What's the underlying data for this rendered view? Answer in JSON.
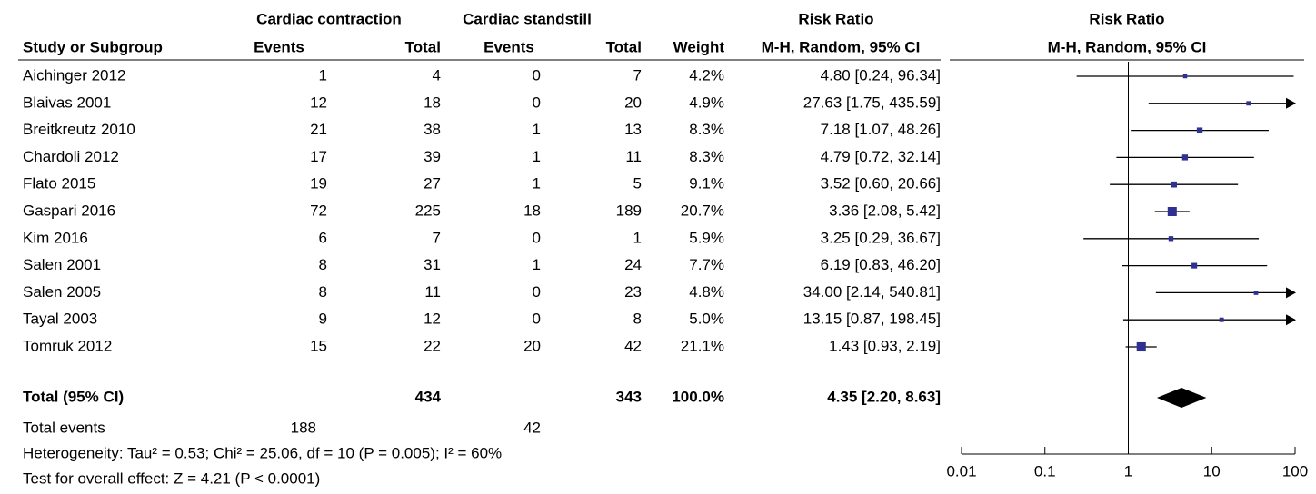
{
  "header": {
    "group1": "Cardiac contraction",
    "group2": "Cardiac standstill",
    "rr_table": "Risk Ratio",
    "rr_plot": "Risk Ratio"
  },
  "columns": [
    "Study or Subgroup",
    "Events",
    "Total",
    "Events",
    "Total",
    "Weight",
    "M-H, Random, 95% CI",
    "M-H, Random, 95% CI"
  ],
  "rows": [
    [
      "Aichinger 2012",
      "1",
      "4",
      "0",
      "7",
      "4.2%",
      "4.80 [0.24, 96.34]"
    ],
    [
      "Blaivas 2001",
      "12",
      "18",
      "0",
      "20",
      "4.9%",
      "27.63 [1.75, 435.59]"
    ],
    [
      "Breitkreutz 2010",
      "21",
      "38",
      "1",
      "13",
      "8.3%",
      "7.18 [1.07, 48.26]"
    ],
    [
      "Chardoli 2012",
      "17",
      "39",
      "1",
      "11",
      "8.3%",
      "4.79 [0.72, 32.14]"
    ],
    [
      "Flato 2015",
      "19",
      "27",
      "1",
      "5",
      "9.1%",
      "3.52 [0.60, 20.66]"
    ],
    [
      "Gaspari 2016",
      "72",
      "225",
      "18",
      "189",
      "20.7%",
      "3.36 [2.08, 5.42]"
    ],
    [
      "Kim 2016",
      "6",
      "7",
      "0",
      "1",
      "5.9%",
      "3.25 [0.29, 36.67]"
    ],
    [
      "Salen 2001",
      "8",
      "31",
      "1",
      "24",
      "7.7%",
      "6.19 [0.83, 46.20]"
    ],
    [
      "Salen 2005",
      "8",
      "11",
      "0",
      "23",
      "4.8%",
      "34.00 [2.14, 540.81]"
    ],
    [
      "Tayal 2003",
      "9",
      "12",
      "0",
      "8",
      "5.0%",
      "13.15 [0.87, 198.45]"
    ],
    [
      "Tomruk 2012",
      "15",
      "22",
      "20",
      "42",
      "21.1%",
      "1.43 [0.93, 2.19]"
    ]
  ],
  "total": {
    "label": "Total (95% CI)",
    "total1": "434",
    "total2": "343",
    "weight": "100.0%",
    "ci": "4.35 [2.20, 8.63]"
  },
  "total_events": {
    "label": "Total events",
    "events1": "188",
    "events2": "42"
  },
  "heterogeneity": "Heterogeneity: Tau² = 0.53; Chi² = 25.06, df = 10 (P = 0.005); I² = 60%",
  "overall": "Test for overall effect: Z = 4.21 (P < 0.0001)",
  "chart_data": {
    "type": "forest",
    "log_scale": true,
    "xlim": [
      0.01,
      100
    ],
    "xticks": [
      0.01,
      0.1,
      1,
      10,
      100
    ],
    "color": "#2e3192",
    "estimates": [
      4.8,
      27.63,
      7.18,
      4.79,
      3.52,
      3.36,
      3.25,
      6.19,
      34.0,
      13.15,
      1.43
    ],
    "lower": [
      0.24,
      1.75,
      1.07,
      0.72,
      0.6,
      2.08,
      0.29,
      0.83,
      2.14,
      0.87,
      0.93
    ],
    "upper": [
      96.34,
      435.59,
      48.26,
      32.14,
      20.66,
      5.42,
      36.67,
      46.2,
      540.81,
      198.45,
      2.19
    ],
    "weights": [
      4.2,
      4.9,
      8.3,
      8.3,
      9.1,
      20.7,
      5.9,
      7.7,
      4.8,
      5.0,
      21.1
    ],
    "pooled": {
      "estimate": 4.35,
      "lower": 2.2,
      "upper": 8.63
    }
  }
}
